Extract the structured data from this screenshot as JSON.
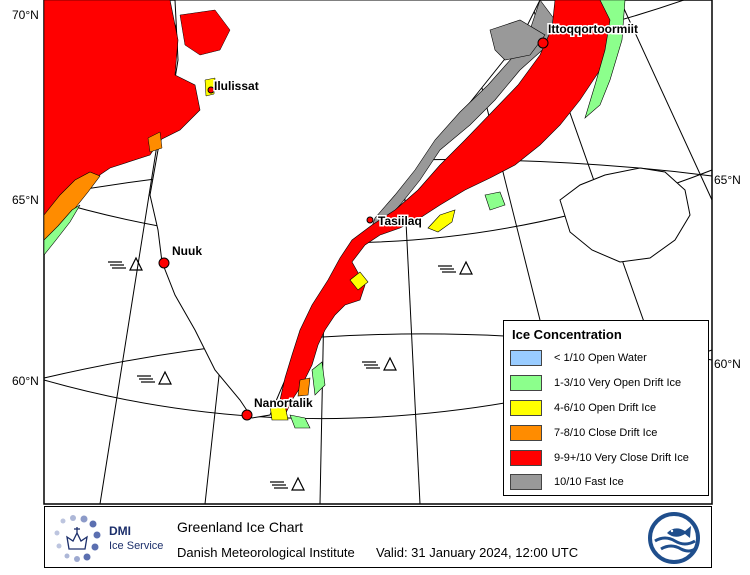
{
  "map": {
    "lat_labels": [
      "70°N",
      "65°N",
      "60°N",
      "65°N",
      "60°N"
    ],
    "places": [
      "Ittoqqortoormiit",
      "Ilulissat",
      "Tasiilaq",
      "Nuuk",
      "Nanortalik"
    ]
  },
  "legend": {
    "title": "Ice Concentration",
    "items": [
      {
        "label": "< 1/10 Open Water",
        "color": "#99ccff"
      },
      {
        "label": "1-3/10 Very Open Drift Ice",
        "color": "#8cff8c"
      },
      {
        "label": "4-6/10 Open Drift Ice",
        "color": "#ffff00"
      },
      {
        "label": "7-8/10 Close Drift Ice",
        "color": "#ff8c00"
      },
      {
        "label": "9-9+/10 Very Close Drift Ice",
        "color": "#ff0000"
      },
      {
        "label": "10/10 Fast Ice",
        "color": "#999999"
      }
    ]
  },
  "footer": {
    "logo_name": "DMI",
    "logo_sub": "Ice Service",
    "chart_title": "Greenland Ice Chart",
    "institute": "Danish Meteorological Institute",
    "valid": "Valid: 31 January 2024, 12:00 UTC"
  }
}
